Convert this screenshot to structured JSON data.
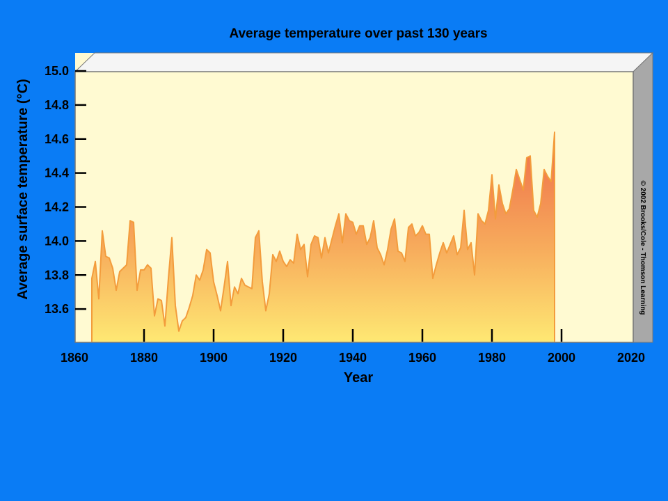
{
  "colors": {
    "background": "#0a7cf5",
    "plot_face": "#fffad2",
    "panel_side": "#a8a8a8",
    "panel_top": "#f5f5f5",
    "area_top": "#ee6a48",
    "area_mid": "#f7ab5c",
    "area_bottom": "#fee873",
    "line": "#f39c3c"
  },
  "copyright": "© 2002 Brooks/Cole - Thomson Learning",
  "chart_data": {
    "type": "area",
    "title": "Average temperature over past 130 years",
    "xlabel": "Year",
    "ylabel": "Average surface temperature (°C)",
    "xlim": [
      1860,
      2020
    ],
    "ylim": [
      13.4,
      15.0
    ],
    "xticks": [
      1860,
      1880,
      1900,
      1920,
      1940,
      1960,
      1980,
      2000,
      2020
    ],
    "yticks": [
      "15.0",
      "14.8",
      "14.6",
      "14.4",
      "14.2",
      "14.0",
      "13.8",
      "13.6"
    ],
    "grid": false,
    "legend": "none",
    "series": [
      {
        "x": [
          1865,
          1866,
          1867,
          1868,
          1869,
          1870,
          1871,
          1872,
          1873,
          1874,
          1875,
          1876,
          1877,
          1878,
          1879,
          1880,
          1881,
          1882,
          1883,
          1884,
          1885,
          1886,
          1887,
          1888,
          1889,
          1890,
          1891,
          1892,
          1893,
          1894,
          1895,
          1896,
          1897,
          1898,
          1899,
          1900,
          1901,
          1902,
          1903,
          1904,
          1905,
          1906,
          1907,
          1908,
          1909,
          1910,
          1911,
          1912,
          1913,
          1914,
          1915,
          1916,
          1917,
          1918,
          1919,
          1920,
          1921,
          1922,
          1923,
          1924,
          1925,
          1926,
          1927,
          1928,
          1929,
          1930,
          1931,
          1932,
          1933,
          1934,
          1935,
          1936,
          1937,
          1938,
          1939,
          1940,
          1941,
          1942,
          1943,
          1944,
          1945,
          1946,
          1947,
          1948,
          1949,
          1950,
          1951,
          1952,
          1953,
          1954,
          1955,
          1956,
          1957,
          1958,
          1959,
          1960,
          1961,
          1962,
          1963,
          1964,
          1965,
          1966,
          1967,
          1968,
          1969,
          1970,
          1971,
          1972,
          1973,
          1974,
          1975,
          1976,
          1977,
          1978,
          1979,
          1980,
          1981,
          1982,
          1983,
          1984,
          1985,
          1986,
          1987,
          1988,
          1989,
          1990,
          1991,
          1992,
          1993,
          1994,
          1995,
          1996,
          1997,
          1998
        ],
        "values": [
          13.78,
          13.88,
          13.66,
          14.06,
          13.91,
          13.9,
          13.84,
          13.71,
          13.82,
          13.84,
          13.86,
          14.12,
          14.11,
          13.71,
          13.83,
          13.83,
          13.86,
          13.84,
          13.56,
          13.66,
          13.65,
          13.5,
          13.78,
          14.02,
          13.62,
          13.47,
          13.53,
          13.55,
          13.61,
          13.68,
          13.8,
          13.77,
          13.83,
          13.95,
          13.93,
          13.76,
          13.68,
          13.59,
          13.73,
          13.88,
          13.62,
          13.73,
          13.69,
          13.78,
          13.74,
          13.73,
          13.72,
          14.02,
          14.06,
          13.76,
          13.59,
          13.69,
          13.92,
          13.88,
          13.94,
          13.88,
          13.85,
          13.89,
          13.87,
          14.04,
          13.95,
          13.98,
          13.79,
          13.98,
          14.03,
          14.02,
          13.9,
          14.02,
          13.93,
          14.01,
          14.09,
          14.16,
          13.99,
          14.16,
          14.12,
          14.11,
          14.04,
          14.09,
          14.09,
          13.98,
          14.02,
          14.12,
          13.96,
          13.92,
          13.86,
          13.95,
          14.07,
          14.13,
          13.94,
          13.93,
          13.88,
          14.08,
          14.1,
          14.03,
          14.05,
          14.09,
          14.04,
          14.04,
          13.78,
          13.86,
          13.93,
          13.99,
          13.93,
          13.98,
          14.03,
          13.92,
          13.96,
          14.18,
          13.95,
          13.99,
          13.8,
          14.16,
          14.12,
          14.1,
          14.18,
          14.39,
          14.13,
          14.33,
          14.22,
          14.16,
          14.19,
          14.3,
          14.42,
          14.36,
          14.3,
          14.49,
          14.5,
          14.18,
          14.14,
          14.22,
          14.42,
          14.38,
          14.35,
          14.64
        ]
      }
    ]
  }
}
